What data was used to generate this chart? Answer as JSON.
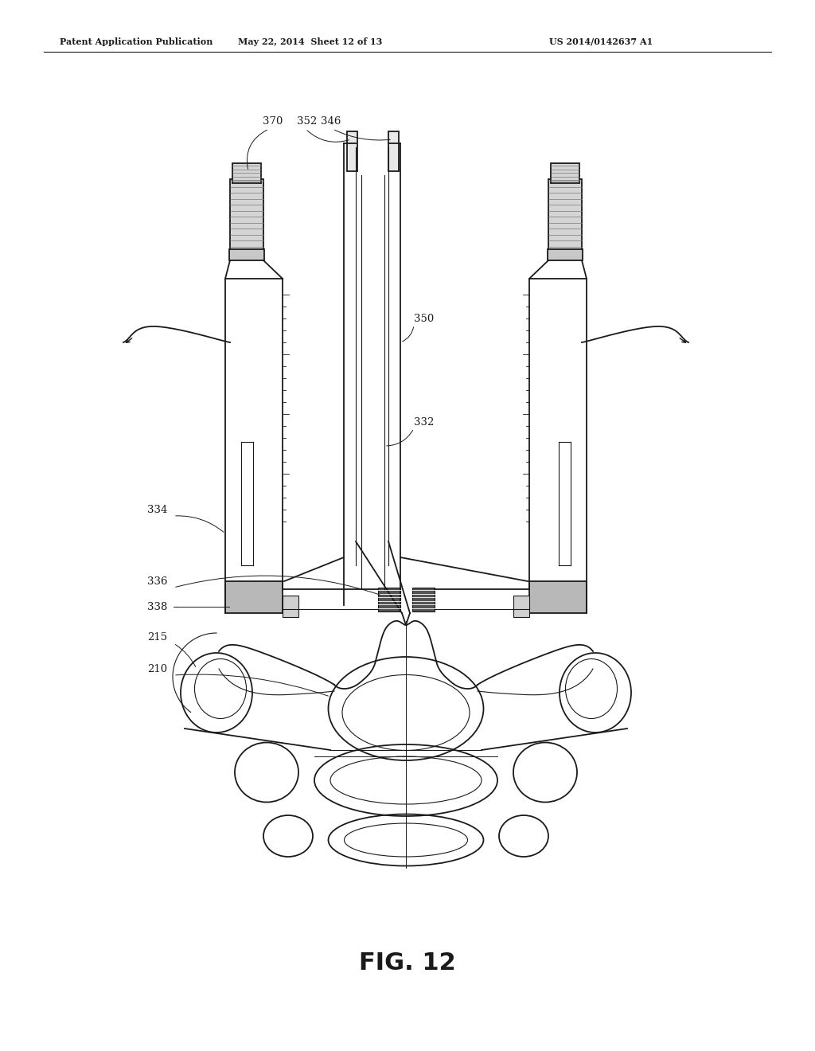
{
  "title": "FIG. 12",
  "header_left": "Patent Application Publication",
  "header_mid": "May 22, 2014  Sheet 12 of 13",
  "header_right": "US 2014/0142637 A1",
  "bg_color": "#ffffff",
  "line_color": "#1a1a1a",
  "gray_light": "#c8c8c8",
  "gray_med": "#888888",
  "gray_dark": "#555555"
}
